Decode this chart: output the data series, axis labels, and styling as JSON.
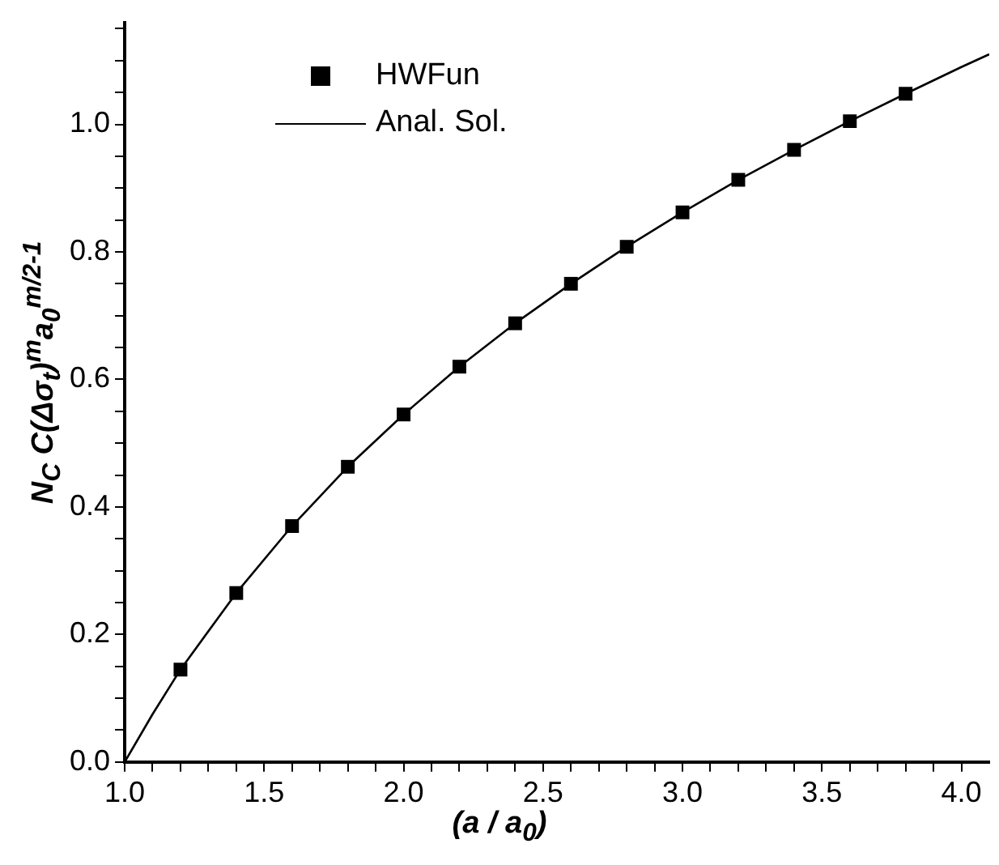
{
  "chart_data": {
    "type": "scatter",
    "xlabel": "(a / a$_{0}$)",
    "ylabel": "N$_{C}$ C(Δσ$_{t}$)$^{m}$a$_{0}$$^{m/2-1}$",
    "xlim": [
      1.0,
      4.1
    ],
    "ylim": [
      0,
      1.16
    ],
    "xticks": [
      {
        "value": 1.0,
        "label": "1.0"
      },
      {
        "value": 1.1,
        "label": null
      },
      {
        "value": 1.2,
        "label": null
      },
      {
        "value": 1.3,
        "label": null
      },
      {
        "value": 1.4,
        "label": null
      },
      {
        "value": 1.5,
        "label": "1.5"
      },
      {
        "value": 1.6,
        "label": null
      },
      {
        "value": 1.7,
        "label": null
      },
      {
        "value": 1.8,
        "label": null
      },
      {
        "value": 1.9,
        "label": null
      },
      {
        "value": 2.0,
        "label": "2.0"
      },
      {
        "value": 2.1,
        "label": null
      },
      {
        "value": 2.2,
        "label": null
      },
      {
        "value": 2.3,
        "label": null
      },
      {
        "value": 2.4,
        "label": null
      },
      {
        "value": 2.5,
        "label": "2.5"
      },
      {
        "value": 2.6,
        "label": null
      },
      {
        "value": 2.7,
        "label": null
      },
      {
        "value": 2.8,
        "label": null
      },
      {
        "value": 2.9,
        "label": null
      },
      {
        "value": 3.0,
        "label": "3.0"
      },
      {
        "value": 3.1,
        "label": null
      },
      {
        "value": 3.2,
        "label": null
      },
      {
        "value": 3.3,
        "label": null
      },
      {
        "value": 3.4,
        "label": null
      },
      {
        "value": 3.5,
        "label": "3.5"
      },
      {
        "value": 3.6,
        "label": null
      },
      {
        "value": 3.7,
        "label": null
      },
      {
        "value": 3.8,
        "label": null
      },
      {
        "value": 3.9,
        "label": null
      },
      {
        "value": 4.0,
        "label": "4.0"
      }
    ],
    "yticks": [
      {
        "value": 0,
        "label": "0.0"
      },
      {
        "value": 0.05,
        "label": null
      },
      {
        "value": 0.1,
        "label": null
      },
      {
        "value": 0.15,
        "label": null
      },
      {
        "value": 0.2,
        "label": "0.2"
      },
      {
        "value": 0.25,
        "label": null
      },
      {
        "value": 0.3,
        "label": null
      },
      {
        "value": 0.35,
        "label": null
      },
      {
        "value": 0.4,
        "label": "0.4"
      },
      {
        "value": 0.45,
        "label": null
      },
      {
        "value": 0.5,
        "label": null
      },
      {
        "value": 0.55,
        "label": null
      },
      {
        "value": 0.6,
        "label": "0.6"
      },
      {
        "value": 0.65,
        "label": null
      },
      {
        "value": 0.7,
        "label": null
      },
      {
        "value": 0.75,
        "label": null
      },
      {
        "value": 0.8,
        "label": "0.8"
      },
      {
        "value": 0.85,
        "label": null
      },
      {
        "value": 0.9,
        "label": null
      },
      {
        "value": 0.95,
        "label": null
      },
      {
        "value": 1.0,
        "label": "1.0"
      },
      {
        "value": 1.05,
        "label": null
      },
      {
        "value": 1.1,
        "label": null
      },
      {
        "value": 1.15,
        "label": null
      }
    ],
    "grid": false,
    "legend": "top left",
    "series": [
      {
        "name": "HWFun",
        "type": "scatter",
        "marker": "square",
        "color": "#000000",
        "x": [
          1.2,
          1.4,
          1.6,
          1.8,
          2.0,
          2.2,
          2.4,
          2.6,
          2.8,
          3.0,
          3.2,
          3.4,
          3.6,
          3.8
        ],
        "values": [
          0.145,
          0.265,
          0.37,
          0.463,
          0.545,
          0.62,
          0.688,
          0.75,
          0.808,
          0.862,
          0.913,
          0.96,
          1.005,
          1.048
        ]
      },
      {
        "name": "Anal. Sol.",
        "type": "line",
        "marker": "none",
        "line_style": "solid",
        "color": "#000000",
        "x": [
          1.0,
          1.1,
          1.2,
          1.4,
          1.6,
          1.8,
          2.0,
          2.2,
          2.4,
          2.6,
          2.8,
          3.0,
          3.2,
          3.4,
          3.6,
          3.8,
          4.0,
          4.1
        ],
        "values": [
          0,
          0.075,
          0.145,
          0.265,
          0.37,
          0.463,
          0.545,
          0.62,
          0.688,
          0.75,
          0.808,
          0.862,
          0.913,
          0.96,
          1.005,
          1.048,
          1.09,
          1.11
        ]
      }
    ]
  }
}
